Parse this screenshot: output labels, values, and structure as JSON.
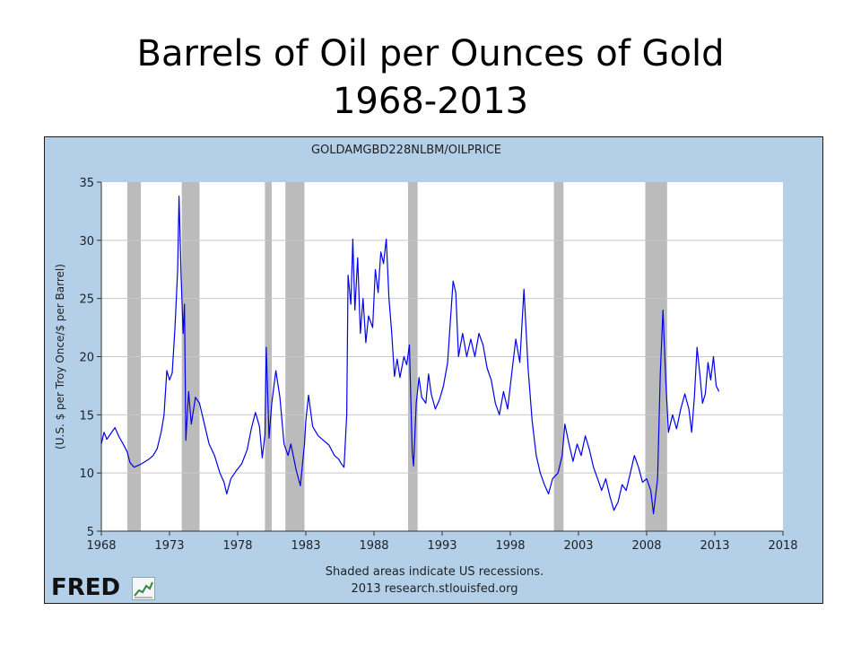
{
  "slide": {
    "title_line1": "Barrels of Oil per Ounces of Gold",
    "title_line2": "1968-2013"
  },
  "footer": {
    "note": "Shaded areas indicate US recessions.",
    "source": "2013 research.stlouisfed.org",
    "logo_text": "FRED"
  },
  "colors": {
    "panel_background": "#b4cfe8",
    "plot_background": "#ffffff",
    "series_line": "#0000ee",
    "recession_shade": "#bbbbbb",
    "grid": "#c8c8c8"
  },
  "chart_data": {
    "type": "line",
    "title": "GOLDAMGBD228NLBM/OILPRICE",
    "xlabel": "",
    "ylabel": "(U.S. $ per Troy Once/$ per Barrel)",
    "xlim": [
      1968,
      2018
    ],
    "ylim": [
      5,
      35
    ],
    "x_ticks": [
      1968,
      1973,
      1978,
      1983,
      1988,
      1993,
      1998,
      2003,
      2008,
      2013,
      2018
    ],
    "y_ticks": [
      5,
      10,
      15,
      20,
      25,
      30,
      35
    ],
    "grid": "horizontal",
    "recessions": [
      [
        1969.9,
        1970.9
      ],
      [
        1973.9,
        1975.2
      ],
      [
        1980.0,
        1980.5
      ],
      [
        1981.5,
        1982.9
      ],
      [
        1990.5,
        1991.2
      ],
      [
        2001.2,
        2001.9
      ],
      [
        2007.9,
        2009.5
      ]
    ],
    "series": [
      {
        "points": [
          [
            1968.0,
            12.5
          ],
          [
            1968.2,
            13.5
          ],
          [
            1968.4,
            12.9
          ],
          [
            1968.7,
            13.4
          ],
          [
            1969.0,
            13.9
          ],
          [
            1969.3,
            13.1
          ],
          [
            1969.6,
            12.5
          ],
          [
            1969.9,
            11.8
          ],
          [
            1970.1,
            10.9
          ],
          [
            1970.4,
            10.5
          ],
          [
            1970.8,
            10.7
          ],
          [
            1971.1,
            10.9
          ],
          [
            1971.5,
            11.2
          ],
          [
            1971.8,
            11.5
          ],
          [
            1972.1,
            12.1
          ],
          [
            1972.4,
            13.6
          ],
          [
            1972.6,
            15.0
          ],
          [
            1972.8,
            18.8
          ],
          [
            1973.0,
            18.0
          ],
          [
            1973.2,
            18.6
          ],
          [
            1973.4,
            22.5
          ],
          [
            1973.6,
            27.5
          ],
          [
            1973.7,
            33.8
          ],
          [
            1973.85,
            27.0
          ],
          [
            1974.0,
            22.0
          ],
          [
            1974.1,
            24.5
          ],
          [
            1974.2,
            12.8
          ],
          [
            1974.4,
            17.0
          ],
          [
            1974.6,
            14.2
          ],
          [
            1974.9,
            16.5
          ],
          [
            1975.2,
            16.0
          ],
          [
            1975.5,
            14.5
          ],
          [
            1975.9,
            12.5
          ],
          [
            1976.3,
            11.5
          ],
          [
            1976.7,
            10.0
          ],
          [
            1977.0,
            9.2
          ],
          [
            1977.2,
            8.2
          ],
          [
            1977.5,
            9.5
          ],
          [
            1977.9,
            10.2
          ],
          [
            1978.3,
            10.8
          ],
          [
            1978.7,
            12.0
          ],
          [
            1979.0,
            13.8
          ],
          [
            1979.3,
            15.2
          ],
          [
            1979.6,
            14.0
          ],
          [
            1979.8,
            11.3
          ],
          [
            1980.0,
            13.3
          ],
          [
            1980.1,
            20.8
          ],
          [
            1980.3,
            13.0
          ],
          [
            1980.5,
            16.0
          ],
          [
            1980.8,
            18.8
          ],
          [
            1981.1,
            16.5
          ],
          [
            1981.4,
            12.5
          ],
          [
            1981.7,
            11.5
          ],
          [
            1981.9,
            12.5
          ],
          [
            1982.3,
            10.2
          ],
          [
            1982.6,
            8.9
          ],
          [
            1982.9,
            12.5
          ],
          [
            1983.0,
            14.5
          ],
          [
            1983.2,
            16.7
          ],
          [
            1983.5,
            14.0
          ],
          [
            1983.9,
            13.2
          ],
          [
            1984.3,
            12.8
          ],
          [
            1984.7,
            12.4
          ],
          [
            1985.1,
            11.5
          ],
          [
            1985.4,
            11.2
          ],
          [
            1985.6,
            10.8
          ],
          [
            1985.8,
            10.5
          ],
          [
            1986.0,
            15.0
          ],
          [
            1986.1,
            27.0
          ],
          [
            1986.3,
            24.5
          ],
          [
            1986.45,
            30.1
          ],
          [
            1986.6,
            24.0
          ],
          [
            1986.8,
            28.5
          ],
          [
            1987.0,
            22.0
          ],
          [
            1987.2,
            25.0
          ],
          [
            1987.4,
            21.2
          ],
          [
            1987.6,
            23.5
          ],
          [
            1987.9,
            22.5
          ],
          [
            1988.1,
            27.5
          ],
          [
            1988.3,
            25.5
          ],
          [
            1988.5,
            29.0
          ],
          [
            1988.7,
            28.0
          ],
          [
            1988.9,
            30.1
          ],
          [
            1989.1,
            25.0
          ],
          [
            1989.3,
            22.0
          ],
          [
            1989.5,
            18.3
          ],
          [
            1989.7,
            19.8
          ],
          [
            1989.9,
            18.2
          ],
          [
            1990.2,
            20.0
          ],
          [
            1990.4,
            19.3
          ],
          [
            1990.6,
            21.0
          ],
          [
            1990.8,
            11.8
          ],
          [
            1990.9,
            10.6
          ],
          [
            1991.1,
            16.0
          ],
          [
            1991.3,
            18.2
          ],
          [
            1991.5,
            16.5
          ],
          [
            1991.8,
            16.0
          ],
          [
            1992.0,
            18.5
          ],
          [
            1992.2,
            16.8
          ],
          [
            1992.5,
            15.5
          ],
          [
            1992.8,
            16.3
          ],
          [
            1993.1,
            17.5
          ],
          [
            1993.4,
            19.5
          ],
          [
            1993.6,
            23.0
          ],
          [
            1993.8,
            26.5
          ],
          [
            1994.0,
            25.5
          ],
          [
            1994.2,
            20.0
          ],
          [
            1994.5,
            22.0
          ],
          [
            1994.8,
            20.0
          ],
          [
            1995.1,
            21.5
          ],
          [
            1995.4,
            20.0
          ],
          [
            1995.7,
            22.0
          ],
          [
            1996.0,
            21.0
          ],
          [
            1996.3,
            19.0
          ],
          [
            1996.6,
            18.0
          ],
          [
            1996.9,
            16.0
          ],
          [
            1997.2,
            15.0
          ],
          [
            1997.5,
            17.0
          ],
          [
            1997.8,
            15.5
          ],
          [
            1998.1,
            18.5
          ],
          [
            1998.4,
            21.5
          ],
          [
            1998.7,
            19.5
          ],
          [
            1999.0,
            25.8
          ],
          [
            1999.3,
            19.0
          ],
          [
            1999.6,
            14.5
          ],
          [
            1999.9,
            11.5
          ],
          [
            2000.2,
            10.0
          ],
          [
            2000.5,
            9.0
          ],
          [
            2000.8,
            8.2
          ],
          [
            2001.1,
            9.5
          ],
          [
            2001.5,
            10.0
          ],
          [
            2001.8,
            11.5
          ],
          [
            2002.0,
            14.2
          ],
          [
            2002.3,
            12.5
          ],
          [
            2002.6,
            11.0
          ],
          [
            2002.9,
            12.5
          ],
          [
            2003.2,
            11.5
          ],
          [
            2003.5,
            13.2
          ],
          [
            2003.8,
            12.0
          ],
          [
            2004.1,
            10.5
          ],
          [
            2004.4,
            9.5
          ],
          [
            2004.7,
            8.5
          ],
          [
            2005.0,
            9.5
          ],
          [
            2005.3,
            8.0
          ],
          [
            2005.6,
            6.8
          ],
          [
            2005.9,
            7.5
          ],
          [
            2006.2,
            9.0
          ],
          [
            2006.5,
            8.5
          ],
          [
            2006.8,
            10.0
          ],
          [
            2007.1,
            11.5
          ],
          [
            2007.4,
            10.5
          ],
          [
            2007.7,
            9.2
          ],
          [
            2008.0,
            9.5
          ],
          [
            2008.3,
            8.5
          ],
          [
            2008.5,
            6.5
          ],
          [
            2008.8,
            9.5
          ],
          [
            2009.0,
            18.5
          ],
          [
            2009.2,
            24.0
          ],
          [
            2009.4,
            18.0
          ],
          [
            2009.6,
            13.5
          ],
          [
            2009.9,
            15.0
          ],
          [
            2010.2,
            13.8
          ],
          [
            2010.5,
            15.5
          ],
          [
            2010.8,
            16.8
          ],
          [
            2011.1,
            15.5
          ],
          [
            2011.3,
            13.5
          ],
          [
            2011.5,
            16.5
          ],
          [
            2011.7,
            20.8
          ],
          [
            2011.9,
            18.5
          ],
          [
            2012.1,
            16.0
          ],
          [
            2012.3,
            16.8
          ],
          [
            2012.5,
            19.5
          ],
          [
            2012.7,
            18.0
          ],
          [
            2012.9,
            20.0
          ],
          [
            2013.1,
            17.5
          ],
          [
            2013.3,
            17.0
          ]
        ]
      }
    ]
  }
}
